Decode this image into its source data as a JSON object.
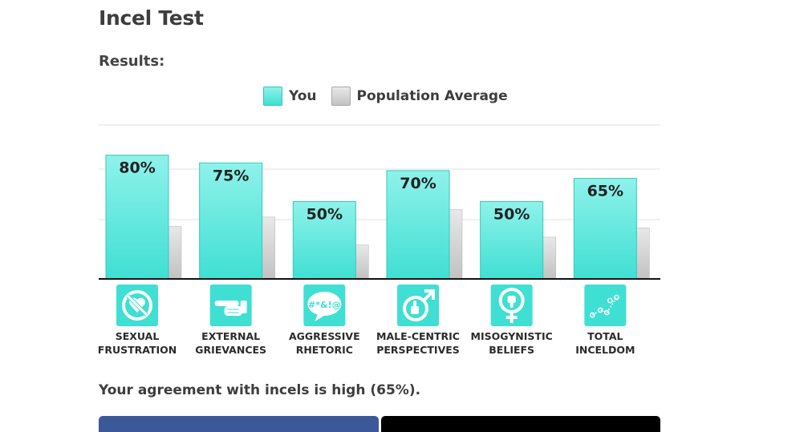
{
  "page": {
    "title": "Incel Test",
    "results_label": "Results:",
    "summary": "Your agreement with incels is high (65%)."
  },
  "legend": {
    "you": "You",
    "population": "Population Average"
  },
  "colors": {
    "you_top": "#8ff2ea",
    "you_bottom": "#40dfd3",
    "you_border": "#31c4b9",
    "pop_top": "#e8e8e8",
    "pop_bottom": "#c2c2c2",
    "icon_bg": "#40dfd3",
    "facebook": "#3b5998",
    "black": "#000000"
  },
  "chart_data": {
    "type": "bar",
    "categories": [
      "SEXUAL FRUSTRATION",
      "EXTERNAL GRIEVANCES",
      "AGGRESSIVE RHETORIC",
      "MALE-CENTRIC PERSPECTIVES",
      "MISOGYNISTIC BELIEFS",
      "TOTAL INCELDOM"
    ],
    "category_lines": [
      [
        "SEXUAL",
        "FRUSTRATION"
      ],
      [
        "EXTERNAL",
        "GRIEVANCES"
      ],
      [
        "AGGRESSIVE",
        "RHETORIC"
      ],
      [
        "MALE-CENTRIC",
        "PERSPECTIVES"
      ],
      [
        "MISOGYNISTIC",
        "BELIEFS"
      ],
      [
        "TOTAL",
        "INCELDOM"
      ]
    ],
    "icons": [
      "no-heart-icon",
      "pointing-hand-icon",
      "speech-bubble-swearing-icon",
      "male-thumbs-up-icon",
      "female-thumbs-down-icon",
      "scatter-line-icon"
    ],
    "series": [
      {
        "name": "You",
        "values": [
          80,
          75,
          50,
          70,
          50,
          65
        ],
        "labels": [
          "80%",
          "75%",
          "50%",
          "70%",
          "50%",
          "65%"
        ]
      },
      {
        "name": "Population Average",
        "values": [
          34,
          40,
          22,
          45,
          27,
          33
        ]
      }
    ],
    "ylim": [
      0,
      100
    ],
    "grid": true,
    "legend_position": "top-center"
  }
}
